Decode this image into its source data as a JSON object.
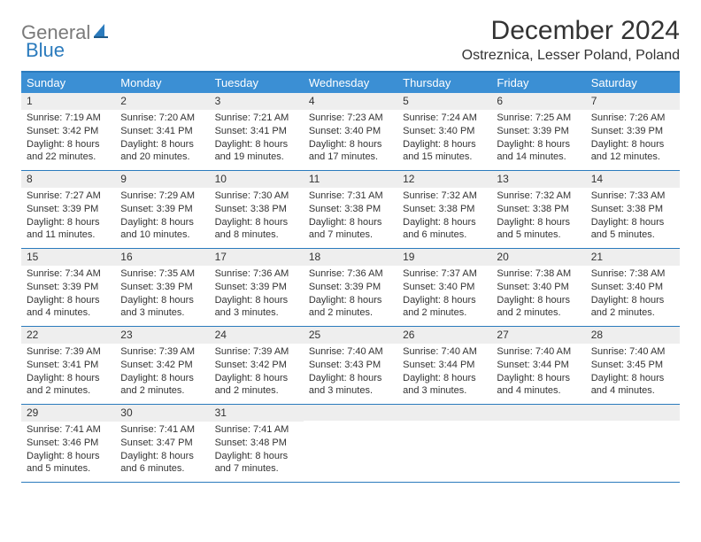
{
  "brand": {
    "gray": "General",
    "blue": "Blue"
  },
  "colors": {
    "accent": "#3b8fd4",
    "accent_border": "#2b7bbd",
    "daynum_bg": "#eeeeee",
    "text": "#333333",
    "logo_gray": "#7a7a7a",
    "logo_blue": "#2b7bbd",
    "background": "#ffffff"
  },
  "title": "December 2024",
  "location": "Ostreznica, Lesser Poland, Poland",
  "day_headers": [
    "Sunday",
    "Monday",
    "Tuesday",
    "Wednesday",
    "Thursday",
    "Friday",
    "Saturday"
  ],
  "weeks": [
    [
      {
        "n": "1",
        "sr": "Sunrise: 7:19 AM",
        "ss": "Sunset: 3:42 PM",
        "d1": "Daylight: 8 hours",
        "d2": "and 22 minutes."
      },
      {
        "n": "2",
        "sr": "Sunrise: 7:20 AM",
        "ss": "Sunset: 3:41 PM",
        "d1": "Daylight: 8 hours",
        "d2": "and 20 minutes."
      },
      {
        "n": "3",
        "sr": "Sunrise: 7:21 AM",
        "ss": "Sunset: 3:41 PM",
        "d1": "Daylight: 8 hours",
        "d2": "and 19 minutes."
      },
      {
        "n": "4",
        "sr": "Sunrise: 7:23 AM",
        "ss": "Sunset: 3:40 PM",
        "d1": "Daylight: 8 hours",
        "d2": "and 17 minutes."
      },
      {
        "n": "5",
        "sr": "Sunrise: 7:24 AM",
        "ss": "Sunset: 3:40 PM",
        "d1": "Daylight: 8 hours",
        "d2": "and 15 minutes."
      },
      {
        "n": "6",
        "sr": "Sunrise: 7:25 AM",
        "ss": "Sunset: 3:39 PM",
        "d1": "Daylight: 8 hours",
        "d2": "and 14 minutes."
      },
      {
        "n": "7",
        "sr": "Sunrise: 7:26 AM",
        "ss": "Sunset: 3:39 PM",
        "d1": "Daylight: 8 hours",
        "d2": "and 12 minutes."
      }
    ],
    [
      {
        "n": "8",
        "sr": "Sunrise: 7:27 AM",
        "ss": "Sunset: 3:39 PM",
        "d1": "Daylight: 8 hours",
        "d2": "and 11 minutes."
      },
      {
        "n": "9",
        "sr": "Sunrise: 7:29 AM",
        "ss": "Sunset: 3:39 PM",
        "d1": "Daylight: 8 hours",
        "d2": "and 10 minutes."
      },
      {
        "n": "10",
        "sr": "Sunrise: 7:30 AM",
        "ss": "Sunset: 3:38 PM",
        "d1": "Daylight: 8 hours",
        "d2": "and 8 minutes."
      },
      {
        "n": "11",
        "sr": "Sunrise: 7:31 AM",
        "ss": "Sunset: 3:38 PM",
        "d1": "Daylight: 8 hours",
        "d2": "and 7 minutes."
      },
      {
        "n": "12",
        "sr": "Sunrise: 7:32 AM",
        "ss": "Sunset: 3:38 PM",
        "d1": "Daylight: 8 hours",
        "d2": "and 6 minutes."
      },
      {
        "n": "13",
        "sr": "Sunrise: 7:32 AM",
        "ss": "Sunset: 3:38 PM",
        "d1": "Daylight: 8 hours",
        "d2": "and 5 minutes."
      },
      {
        "n": "14",
        "sr": "Sunrise: 7:33 AM",
        "ss": "Sunset: 3:38 PM",
        "d1": "Daylight: 8 hours",
        "d2": "and 5 minutes."
      }
    ],
    [
      {
        "n": "15",
        "sr": "Sunrise: 7:34 AM",
        "ss": "Sunset: 3:39 PM",
        "d1": "Daylight: 8 hours",
        "d2": "and 4 minutes."
      },
      {
        "n": "16",
        "sr": "Sunrise: 7:35 AM",
        "ss": "Sunset: 3:39 PM",
        "d1": "Daylight: 8 hours",
        "d2": "and 3 minutes."
      },
      {
        "n": "17",
        "sr": "Sunrise: 7:36 AM",
        "ss": "Sunset: 3:39 PM",
        "d1": "Daylight: 8 hours",
        "d2": "and 3 minutes."
      },
      {
        "n": "18",
        "sr": "Sunrise: 7:36 AM",
        "ss": "Sunset: 3:39 PM",
        "d1": "Daylight: 8 hours",
        "d2": "and 2 minutes."
      },
      {
        "n": "19",
        "sr": "Sunrise: 7:37 AM",
        "ss": "Sunset: 3:40 PM",
        "d1": "Daylight: 8 hours",
        "d2": "and 2 minutes."
      },
      {
        "n": "20",
        "sr": "Sunrise: 7:38 AM",
        "ss": "Sunset: 3:40 PM",
        "d1": "Daylight: 8 hours",
        "d2": "and 2 minutes."
      },
      {
        "n": "21",
        "sr": "Sunrise: 7:38 AM",
        "ss": "Sunset: 3:40 PM",
        "d1": "Daylight: 8 hours",
        "d2": "and 2 minutes."
      }
    ],
    [
      {
        "n": "22",
        "sr": "Sunrise: 7:39 AM",
        "ss": "Sunset: 3:41 PM",
        "d1": "Daylight: 8 hours",
        "d2": "and 2 minutes."
      },
      {
        "n": "23",
        "sr": "Sunrise: 7:39 AM",
        "ss": "Sunset: 3:42 PM",
        "d1": "Daylight: 8 hours",
        "d2": "and 2 minutes."
      },
      {
        "n": "24",
        "sr": "Sunrise: 7:39 AM",
        "ss": "Sunset: 3:42 PM",
        "d1": "Daylight: 8 hours",
        "d2": "and 2 minutes."
      },
      {
        "n": "25",
        "sr": "Sunrise: 7:40 AM",
        "ss": "Sunset: 3:43 PM",
        "d1": "Daylight: 8 hours",
        "d2": "and 3 minutes."
      },
      {
        "n": "26",
        "sr": "Sunrise: 7:40 AM",
        "ss": "Sunset: 3:44 PM",
        "d1": "Daylight: 8 hours",
        "d2": "and 3 minutes."
      },
      {
        "n": "27",
        "sr": "Sunrise: 7:40 AM",
        "ss": "Sunset: 3:44 PM",
        "d1": "Daylight: 8 hours",
        "d2": "and 4 minutes."
      },
      {
        "n": "28",
        "sr": "Sunrise: 7:40 AM",
        "ss": "Sunset: 3:45 PM",
        "d1": "Daylight: 8 hours",
        "d2": "and 4 minutes."
      }
    ],
    [
      {
        "n": "29",
        "sr": "Sunrise: 7:41 AM",
        "ss": "Sunset: 3:46 PM",
        "d1": "Daylight: 8 hours",
        "d2": "and 5 minutes."
      },
      {
        "n": "30",
        "sr": "Sunrise: 7:41 AM",
        "ss": "Sunset: 3:47 PM",
        "d1": "Daylight: 8 hours",
        "d2": "and 6 minutes."
      },
      {
        "n": "31",
        "sr": "Sunrise: 7:41 AM",
        "ss": "Sunset: 3:48 PM",
        "d1": "Daylight: 8 hours",
        "d2": "and 7 minutes."
      },
      null,
      null,
      null,
      null
    ]
  ]
}
